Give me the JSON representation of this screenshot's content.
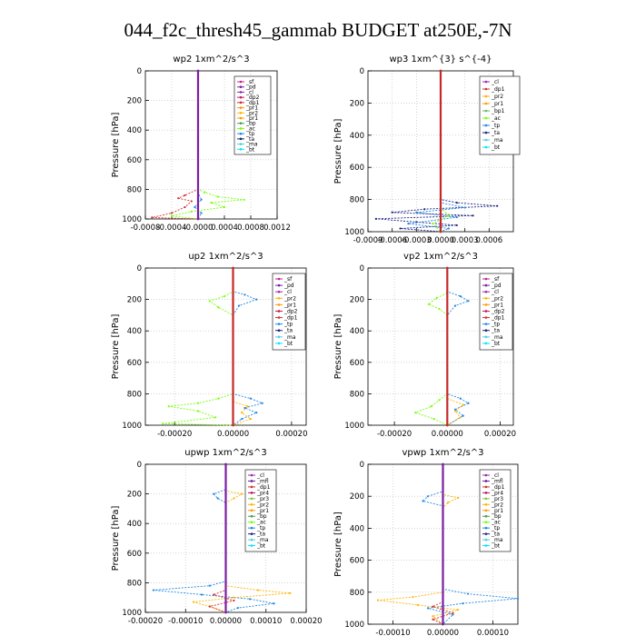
{
  "figure_title": "044_f2c_thresh45_gammab  BUDGET at250E,-7N",
  "colors": {
    "sf": "#d01c8b",
    "pd": "#7b1fa2",
    "cl": "#9c27b0",
    "dp2": "#c2185b",
    "dp1": "#d32f2f",
    "pr2": "#ffb300",
    "pr1": "#ff9800",
    "bp": "#43a047",
    "ac": "#76ff03",
    "tp": "#1e88e5",
    "ta": "#1a237e",
    "ma": "#4dd0e1",
    "bt": "#00e5ff",
    "mfl": "#6a1b9a",
    "pr3": "#8bc34a",
    "pr4": "#ad1457",
    "bp1": "#66bb6a",
    "main": "#c62828",
    "purple": "#7b1fa2"
  },
  "chart_data": [
    {
      "type": "line",
      "title": "wp2   1xm^2/s^3",
      "ylabel": "Pressure  [hPa]",
      "xlim": [
        -0.0008,
        0.0012
      ],
      "ylim": [
        1000,
        0
      ],
      "xticks": [
        "-0.0008",
        "-0.0004",
        "-0.0000",
        "0.0004",
        "0.0008",
        "0.0012"
      ],
      "xtick_values": [
        -0.0008,
        -0.0004,
        0,
        0.0004,
        0.0008,
        0.0012
      ],
      "yticks": [
        "0",
        "200",
        "400",
        "600",
        "800",
        "1000"
      ],
      "legend": [
        "_sf",
        "_pd",
        "_cl",
        "_dp2",
        "_dp1",
        "_pr1",
        "_pr2",
        "_pr1",
        "_bp",
        "_ac",
        "_tp",
        "_ta",
        "_ma",
        "_bt"
      ],
      "series": [
        {
          "key": "ac",
          "points": [
            [
              0,
              0
            ],
            [
              0,
              800
            ],
            [
              0.0001,
              820
            ],
            [
              0.0003,
              850
            ],
            [
              0.0007,
              870
            ],
            [
              0.0002,
              890
            ],
            [
              0.0004,
              920
            ],
            [
              -0.0001,
              950
            ],
            [
              -0.0004,
              980
            ],
            [
              0,
              1000
            ]
          ]
        },
        {
          "key": "dp1",
          "points": [
            [
              0,
              0
            ],
            [
              0,
              800
            ],
            [
              -0.0002,
              840
            ],
            [
              -0.0003,
              860
            ],
            [
              -0.0001,
              880
            ],
            [
              -0.0002,
              920
            ],
            [
              -0.0004,
              960
            ],
            [
              -0.0007,
              990
            ],
            [
              0,
              1000
            ]
          ]
        },
        {
          "key": "tp",
          "points": [
            [
              0,
              0
            ],
            [
              0,
              820
            ],
            [
              5e-05,
              870
            ],
            [
              -5e-05,
              920
            ],
            [
              5e-05,
              960
            ],
            [
              0,
              1000
            ]
          ]
        },
        {
          "key": "purple",
          "points": [
            [
              0,
              0
            ],
            [
              0,
              1000
            ]
          ]
        }
      ]
    },
    {
      "type": "line",
      "title": "wp3   1xm^{3} s^{-4}",
      "ylabel": "Pressure  [hPa]",
      "xlim": [
        -0.0009,
        0.0009
      ],
      "ylim": [
        1000,
        0
      ],
      "xticks": [
        "-0.0009",
        "-0.0006",
        "-0.0003",
        "0.0000",
        "0.0003",
        "0.0006"
      ],
      "xtick_values": [
        -0.0009,
        -0.0006,
        -0.0003,
        0,
        0.0003,
        0.0006
      ],
      "yticks": [
        "0",
        "200",
        "400",
        "600",
        "800",
        "1000"
      ],
      "legend": [
        "_cl",
        "_dp1",
        "_pr2",
        "_pr1",
        "_bp1",
        "_ac",
        "_tp",
        "_ta",
        "_ma",
        "_bt"
      ],
      "series": [
        {
          "key": "ta",
          "points": [
            [
              0,
              0
            ],
            [
              0,
              800
            ],
            [
              0.0002,
              820
            ],
            [
              0.0007,
              840
            ],
            [
              -0.0002,
              860
            ],
            [
              -0.0006,
              880
            ],
            [
              0.0004,
              900
            ],
            [
              -0.0008,
              920
            ],
            [
              -0.0003,
              940
            ],
            [
              0.0002,
              960
            ],
            [
              -0.0005,
              980
            ],
            [
              0,
              1000
            ]
          ]
        },
        {
          "key": "tp",
          "points": [
            [
              0,
              0
            ],
            [
              0,
              820
            ],
            [
              0.0003,
              850
            ],
            [
              -0.0003,
              880
            ],
            [
              0.0002,
              910
            ],
            [
              -0.0004,
              950
            ],
            [
              0.0001,
              980
            ],
            [
              0,
              1000
            ]
          ]
        },
        {
          "key": "ac",
          "points": [
            [
              0,
              0
            ],
            [
              0,
              850
            ],
            [
              0.0001,
              900
            ],
            [
              -0.0001,
              950
            ],
            [
              0,
              1000
            ]
          ]
        },
        {
          "key": "main",
          "points": [
            [
              0,
              0
            ],
            [
              0,
              1000
            ]
          ]
        }
      ]
    },
    {
      "type": "line",
      "title": "up2   1xm^2/s^3",
      "ylabel": "Pressure  [hPa]",
      "xlim": [
        -0.0003,
        0.00025
      ],
      "ylim": [
        1000,
        0
      ],
      "xticks": [
        "-0.00020",
        "0.00000",
        "0.00020"
      ],
      "xtick_values": [
        -0.0002,
        0,
        0.0002
      ],
      "yticks": [
        "0",
        "200",
        "400",
        "600",
        "800",
        "1000"
      ],
      "legend": [
        "_sf",
        "_pd",
        "_cl",
        "_pr2",
        "_pr1",
        "_dp2",
        "_dp1",
        "_tp",
        "_ta",
        "_ma",
        "_bt"
      ],
      "series": [
        {
          "key": "tp",
          "points": [
            [
              0,
              0
            ],
            [
              0,
              150
            ],
            [
              4e-05,
              170
            ],
            [
              8e-05,
              200
            ],
            [
              2e-05,
              240
            ],
            [
              0,
              300
            ],
            [
              0,
              800
            ],
            [
              6e-05,
              830
            ],
            [
              0.0001,
              860
            ],
            [
              4e-05,
              890
            ],
            [
              8e-05,
              920
            ],
            [
              3e-05,
              960
            ],
            [
              0,
              1000
            ]
          ]
        },
        {
          "key": "ac",
          "points": [
            [
              0,
              0
            ],
            [
              0,
              150
            ],
            [
              -3e-05,
              180
            ],
            [
              -8e-05,
              210
            ],
            [
              -5e-05,
              250
            ],
            [
              0,
              300
            ],
            [
              0,
              800
            ],
            [
              -5e-05,
              830
            ],
            [
              -0.00012,
              860
            ],
            [
              -0.00022,
              880
            ],
            [
              -0.00012,
              910
            ],
            [
              -6e-05,
              950
            ],
            [
              -0.00024,
              990
            ],
            [
              0,
              1000
            ]
          ]
        },
        {
          "key": "pr2",
          "points": [
            [
              0,
              0
            ],
            [
              0,
              850
            ],
            [
              5e-05,
              880
            ],
            [
              3e-05,
              920
            ],
            [
              6e-05,
              960
            ],
            [
              0,
              1000
            ]
          ]
        },
        {
          "key": "main",
          "points": [
            [
              0,
              0
            ],
            [
              0,
              1000
            ]
          ]
        }
      ]
    },
    {
      "type": "line",
      "title": "vp2   1xm^2/s^3",
      "ylabel": "Pressure  [hPa]",
      "xlim": [
        -0.0003,
        0.00025
      ],
      "ylim": [
        1000,
        0
      ],
      "xticks": [
        "-0.00020",
        "0.00000",
        "0.00020"
      ],
      "xtick_values": [
        -0.0002,
        0,
        0.0002
      ],
      "yticks": [
        "0",
        "200",
        "400",
        "600",
        "800",
        "1000"
      ],
      "legend": [
        "_sf",
        "_pd",
        "_cl",
        "_pr2",
        "_pr1",
        "_dp2",
        "_dp1",
        "_tp",
        "_ta",
        "_ma",
        "_bt"
      ],
      "series": [
        {
          "key": "tp",
          "points": [
            [
              0,
              0
            ],
            [
              0,
              150
            ],
            [
              5e-05,
              180
            ],
            [
              8e-05,
              210
            ],
            [
              3e-05,
              240
            ],
            [
              0,
              300
            ],
            [
              0,
              800
            ],
            [
              5e-05,
              830
            ],
            [
              8e-05,
              860
            ],
            [
              3e-05,
              900
            ],
            [
              6e-05,
              940
            ],
            [
              0,
              1000
            ]
          ]
        },
        {
          "key": "ac",
          "points": [
            [
              0,
              0
            ],
            [
              0,
              160
            ],
            [
              -4e-05,
              190
            ],
            [
              -7e-05,
              230
            ],
            [
              -3e-05,
              260
            ],
            [
              0,
              300
            ],
            [
              0,
              800
            ],
            [
              -3e-05,
              840
            ],
            [
              -6e-05,
              880
            ],
            [
              -0.00012,
              920
            ],
            [
              -5e-05,
              960
            ],
            [
              0,
              1000
            ]
          ]
        },
        {
          "key": "pr2",
          "points": [
            [
              0,
              0
            ],
            [
              0,
              830
            ],
            [
              6e-05,
              870
            ],
            [
              3e-05,
              910
            ],
            [
              5e-05,
              950
            ],
            [
              0,
              1000
            ]
          ]
        },
        {
          "key": "main",
          "points": [
            [
              0,
              0
            ],
            [
              0,
              1000
            ]
          ]
        }
      ]
    },
    {
      "type": "line",
      "title": "upwp   1xm^2/s^3",
      "ylabel": "Pressure  [hPa]",
      "xlim": [
        -0.0002,
        0.0002
      ],
      "ylim": [
        1000,
        0
      ],
      "xticks": [
        "-0.00020",
        "-0.00010",
        "0.00000",
        "0.00010",
        "0.00020"
      ],
      "xtick_values": [
        -0.0002,
        -0.0001,
        0,
        0.0001,
        0.0002
      ],
      "yticks": [
        "0",
        "200",
        "400",
        "600",
        "800",
        "1000"
      ],
      "legend": [
        "_cl",
        "_mfl",
        "_dp1",
        "_pr4",
        "_pr3",
        "_pr2",
        "_pr1",
        "_bp",
        "_ac",
        "_tp",
        "_ta",
        "_ma",
        "_bt"
      ],
      "series": [
        {
          "key": "tp",
          "points": [
            [
              0,
              0
            ],
            [
              0,
              170
            ],
            [
              -3e-05,
              200
            ],
            [
              -2e-05,
              230
            ],
            [
              0,
              260
            ],
            [
              0,
              790
            ],
            [
              -4e-05,
              820
            ],
            [
              -0.00018,
              850
            ],
            [
              -6e-05,
              880
            ],
            [
              6e-05,
              910
            ],
            [
              0.00012,
              940
            ],
            [
              3e-05,
              970
            ],
            [
              0,
              1000
            ]
          ]
        },
        {
          "key": "pr2",
          "points": [
            [
              0,
              0
            ],
            [
              0,
              180
            ],
            [
              4e-05,
              200
            ],
            [
              2e-05,
              230
            ],
            [
              0,
              260
            ],
            [
              0,
              820
            ],
            [
              8e-05,
              850
            ],
            [
              0.00016,
              870
            ],
            [
              2e-05,
              900
            ],
            [
              -8e-05,
              930
            ],
            [
              -4e-05,
              960
            ],
            [
              0,
              1000
            ]
          ]
        },
        {
          "key": "dp1",
          "points": [
            [
              0,
              0
            ],
            [
              0,
              850
            ],
            [
              -3e-05,
              880
            ],
            [
              2e-05,
              920
            ],
            [
              -4e-05,
              960
            ],
            [
              0,
              1000
            ]
          ]
        },
        {
          "key": "purple",
          "points": [
            [
              0,
              0
            ],
            [
              0,
              1000
            ]
          ]
        }
      ]
    },
    {
      "type": "line",
      "title": "vpwp   1xm^2/s^3",
      "ylabel": "Pressure  [hPa]",
      "xlim": [
        -0.00015,
        0.00015
      ],
      "ylim": [
        1000,
        0
      ],
      "xticks": [
        "-0.00010",
        "0.00000",
        "0.00010"
      ],
      "xtick_values": [
        -0.0001,
        0,
        0.0001
      ],
      "yticks": [
        "0",
        "200",
        "400",
        "600",
        "800",
        "1000"
      ],
      "legend": [
        "_cl",
        "_mfl",
        "_dp1",
        "_pr4",
        "_pr3",
        "_pr2",
        "_pr1",
        "_bp",
        "_ac",
        "_tp",
        "_ta",
        "_ma",
        "_bt"
      ],
      "series": [
        {
          "key": "tp",
          "points": [
            [
              0,
              0
            ],
            [
              0,
              170
            ],
            [
              -3e-05,
              200
            ],
            [
              -4e-05,
              230
            ],
            [
              0,
              260
            ],
            [
              0,
              780
            ],
            [
              5e-05,
              810
            ],
            [
              0.00015,
              840
            ],
            [
              4e-05,
              870
            ],
            [
              -3e-05,
              900
            ],
            [
              2e-05,
              940
            ],
            [
              0,
              1000
            ]
          ]
        },
        {
          "key": "pr2",
          "points": [
            [
              0,
              0
            ],
            [
              0,
              190
            ],
            [
              3e-05,
              210
            ],
            [
              1e-05,
              240
            ],
            [
              0,
              270
            ],
            [
              0,
              800
            ],
            [
              -6e-05,
              830
            ],
            [
              -0.00013,
              850
            ],
            [
              -5e-05,
              880
            ],
            [
              3e-05,
              910
            ],
            [
              -2e-05,
              950
            ],
            [
              0,
              1000
            ]
          ]
        },
        {
          "key": "dp1",
          "points": [
            [
              0,
              0
            ],
            [
              0,
              860
            ],
            [
              -2e-05,
              890
            ],
            [
              2e-05,
              930
            ],
            [
              -2e-05,
              970
            ],
            [
              0,
              1000
            ]
          ]
        },
        {
          "key": "purple",
          "points": [
            [
              0,
              0
            ],
            [
              0,
              1000
            ]
          ]
        }
      ]
    }
  ]
}
